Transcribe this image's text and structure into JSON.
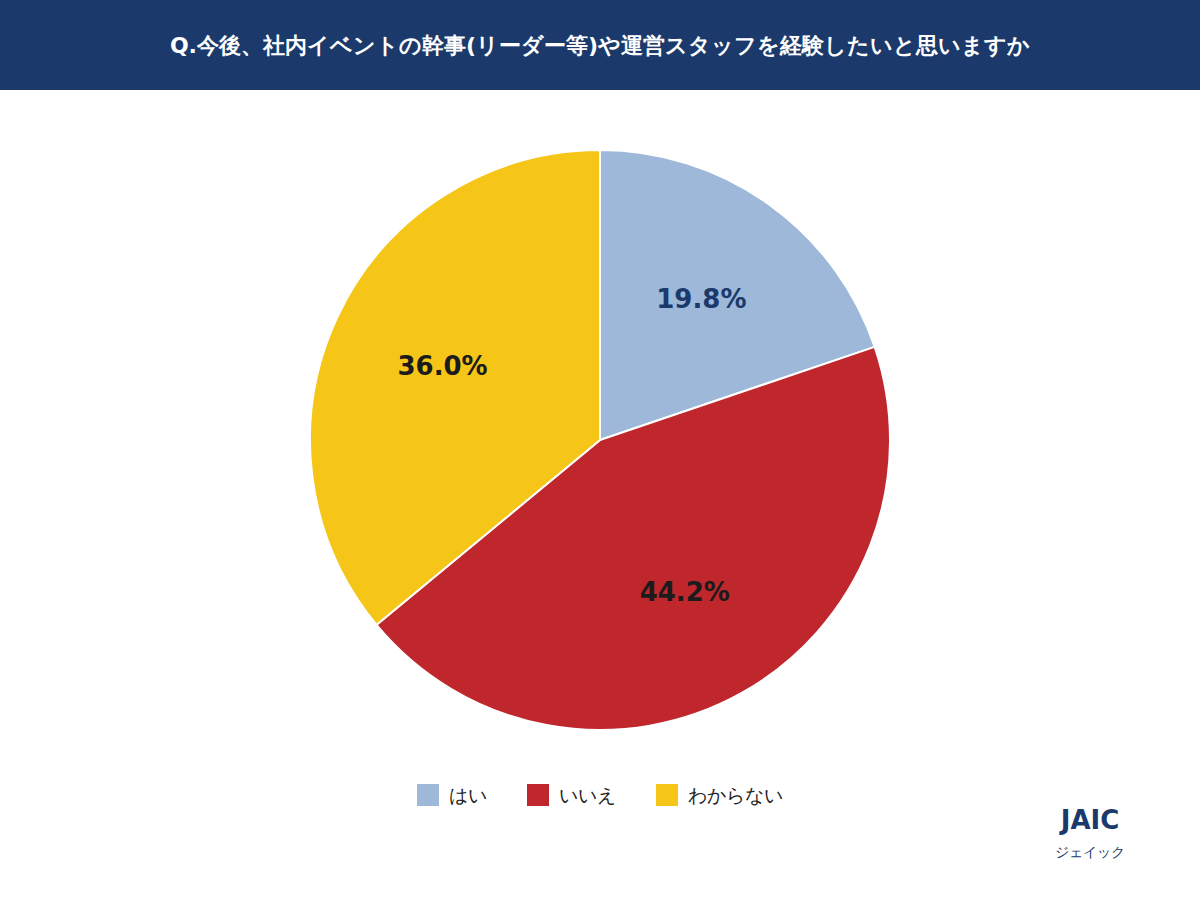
{
  "chart_data": {
    "type": "pie",
    "title": "Q.今後、社内イベントの幹事(リーダー等)や運営スタッフを経験したいと思いますか",
    "categories": [
      "はい",
      "いいえ",
      "わからない"
    ],
    "values": [
      19.8,
      44.2,
      36.0
    ],
    "value_labels": [
      "19.8%",
      "44.2%",
      "36.0%"
    ],
    "colors": [
      "#9DB8D9",
      "#C0272D",
      "#F5C518"
    ],
    "data_labels": true,
    "legend": "bottom",
    "annotations": [
      "JAIC",
      "ジェイック"
    ]
  }
}
